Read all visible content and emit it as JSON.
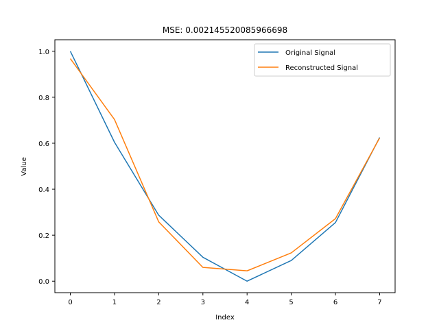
{
  "chart_data": {
    "type": "line",
    "title": "MSE: 0.002145520085966698",
    "xlabel": "Index",
    "ylabel": "Value",
    "x": [
      0,
      1,
      2,
      3,
      4,
      5,
      6,
      7
    ],
    "xticks": [
      "0",
      "1",
      "2",
      "3",
      "4",
      "5",
      "6",
      "7"
    ],
    "yticks": [
      "0.0",
      "0.2",
      "0.4",
      "0.6",
      "0.8",
      "1.0"
    ],
    "xlim": [
      -0.35,
      7.35
    ],
    "ylim": [
      -0.05,
      1.05
    ],
    "grid": false,
    "legend_position": "top-right",
    "series": [
      {
        "name": "Original Signal",
        "color": "#1f77b4",
        "values": [
          1.0,
          0.604,
          0.287,
          0.104,
          0.0,
          0.09,
          0.255,
          0.625
        ]
      },
      {
        "name": "Reconstructed Signal",
        "color": "#ff7f0e",
        "values": [
          0.968,
          0.703,
          0.258,
          0.06,
          0.045,
          0.123,
          0.272,
          0.623
        ]
      }
    ]
  }
}
